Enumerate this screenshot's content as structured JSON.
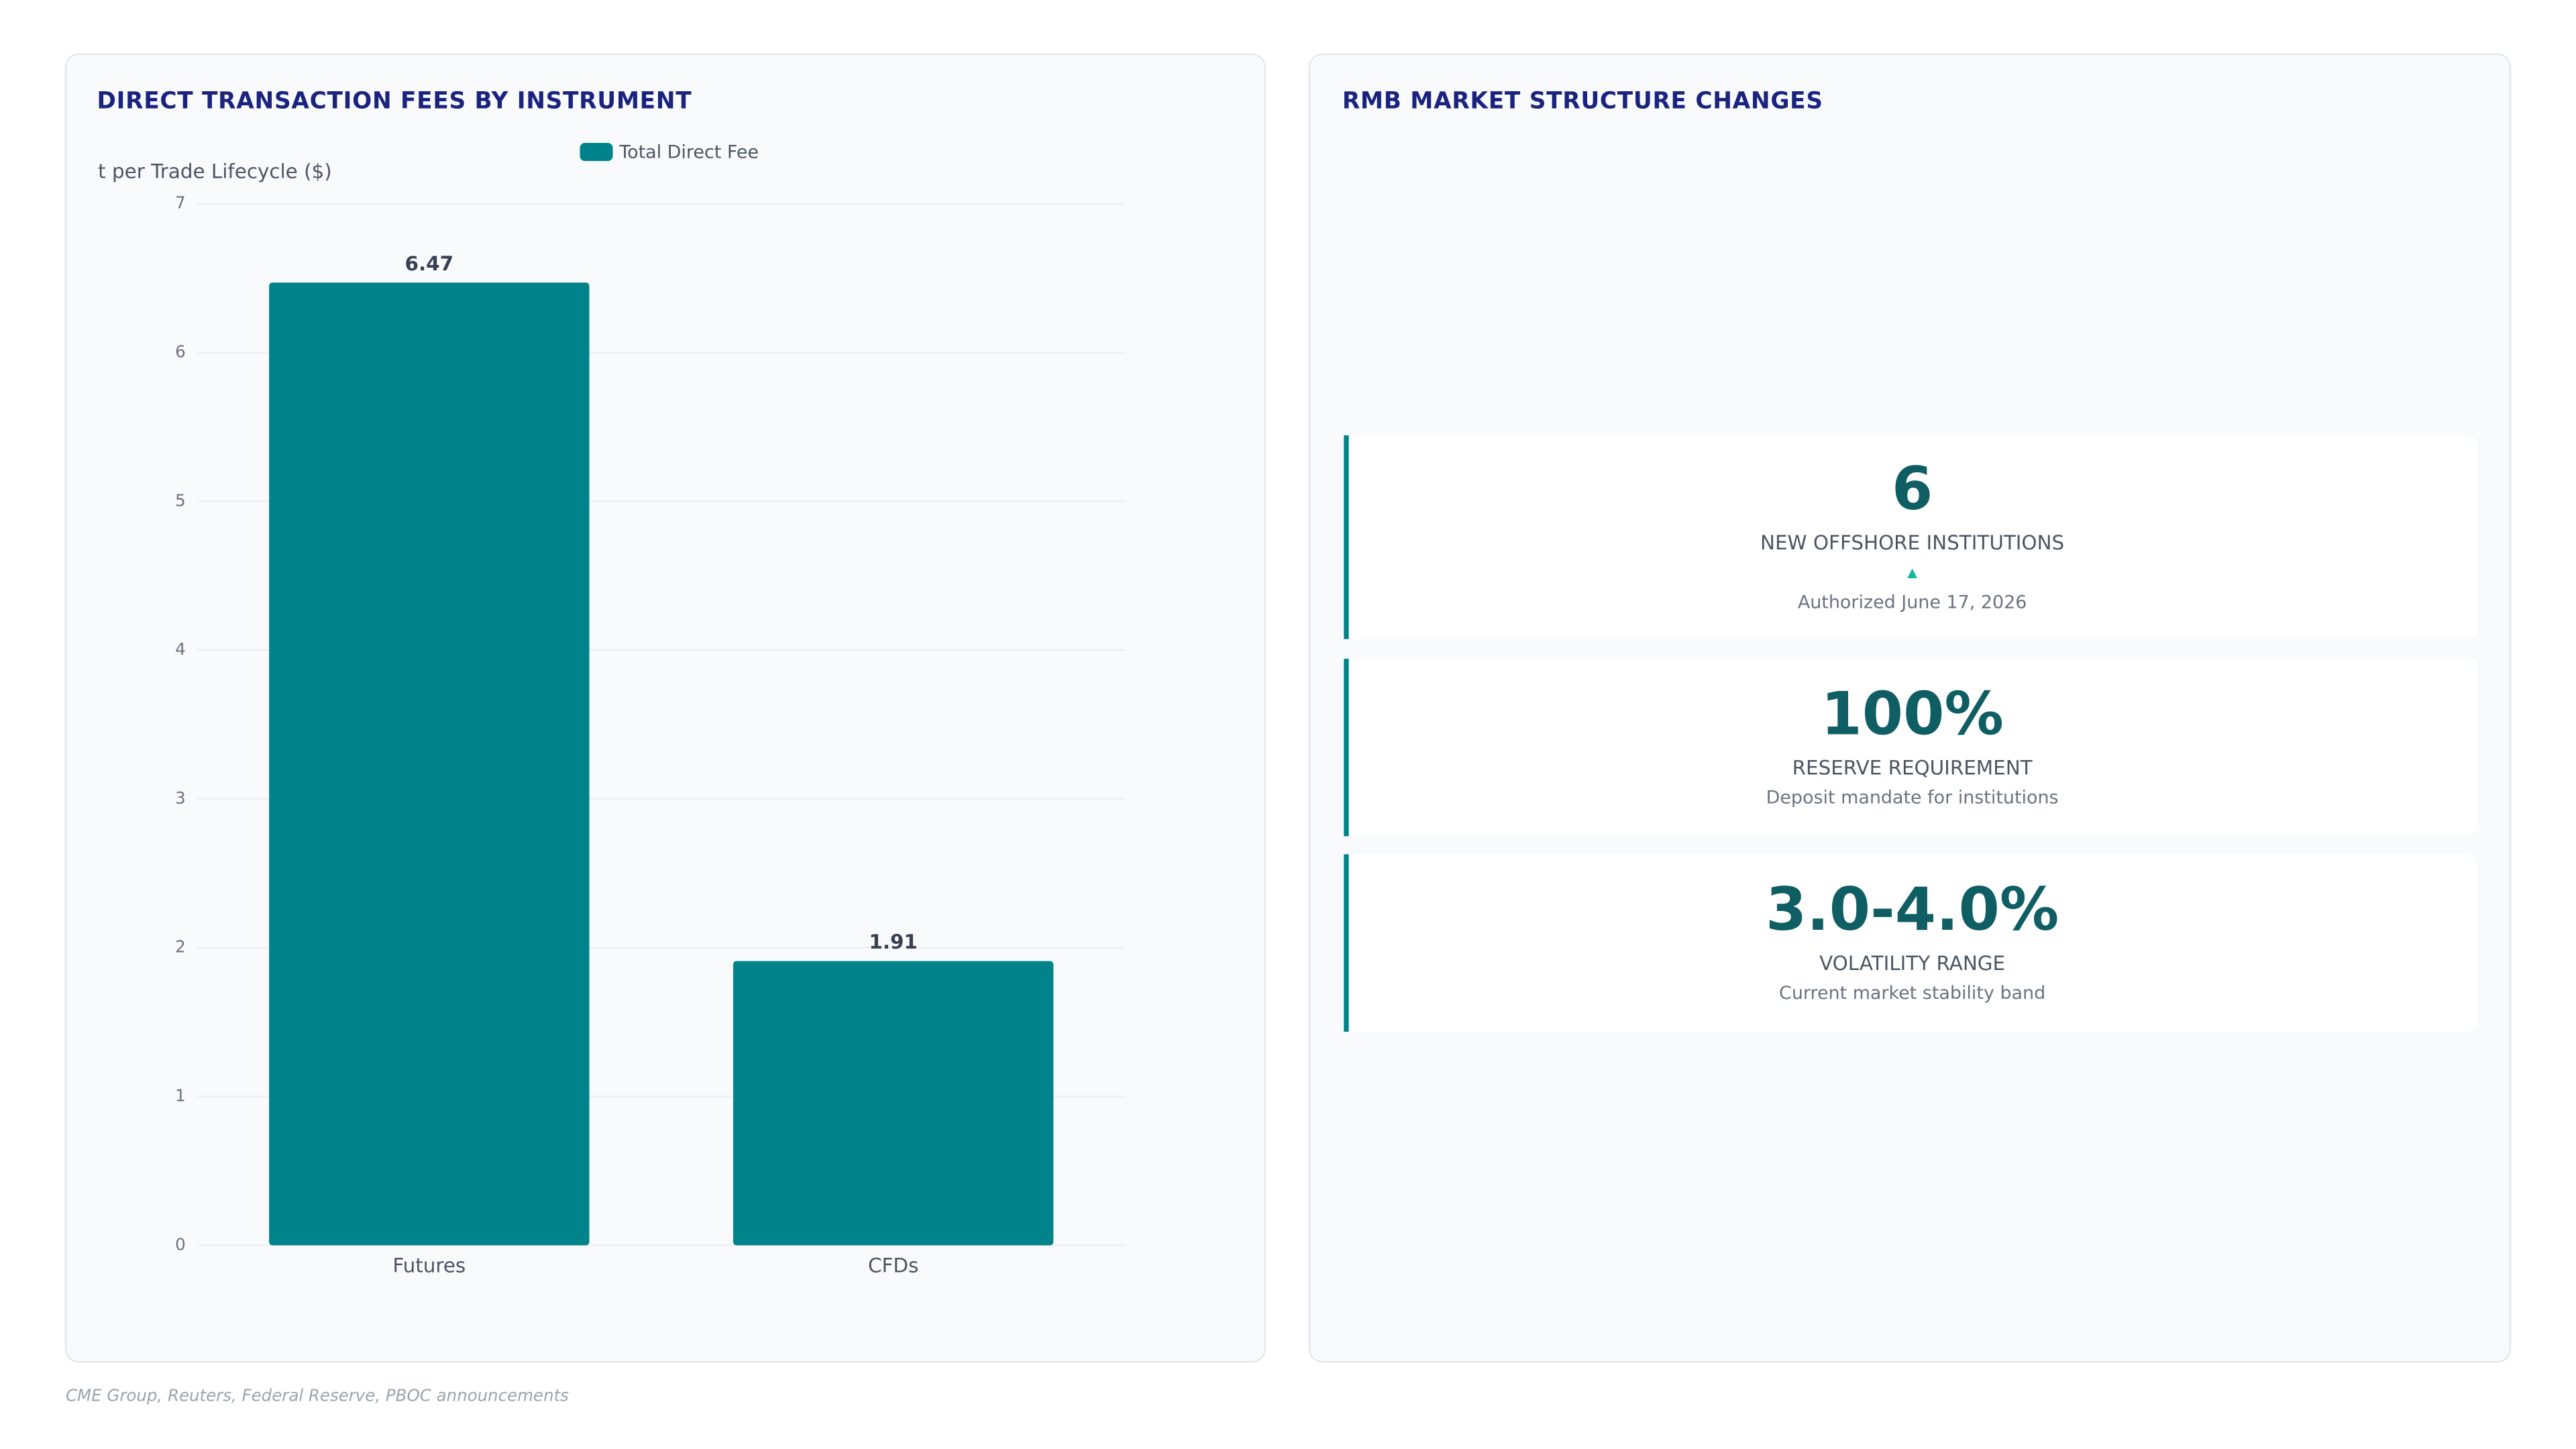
{
  "chart_data": {
    "type": "bar",
    "title": "DIRECT TRANSACTION FEES BY INSTRUMENT",
    "y_label": "Cost per Trade Lifecycle ($)",
    "categories": [
      "Futures",
      "CFDs"
    ],
    "series": [
      {
        "name": "Total Direct Fee",
        "color": "#00838a",
        "values": [
          6.47,
          1.91
        ]
      }
    ],
    "ylim": [
      0,
      7
    ],
    "yticks": [
      0,
      1,
      2,
      3,
      4,
      5,
      6,
      7
    ],
    "grid": true,
    "legend": "top"
  },
  "panel": {
    "title": "RMB MARKET STRUCTURE CHANGES",
    "cards": [
      {
        "value": "6",
        "label": "NEW OFFSHORE INSTITUTIONS",
        "note": "Authorized June 17, 2026"
      },
      {
        "value": "100%",
        "label": "RESERVE REQUIREMENT",
        "note": "Deposit mandate for institutions"
      },
      {
        "value": "3.0-4.0%",
        "label": "VOLATILITY RANGE",
        "note": "Current market stability band"
      }
    ]
  },
  "source": "CME Group, Reuters, Federal Reserve, PBOC announcements"
}
